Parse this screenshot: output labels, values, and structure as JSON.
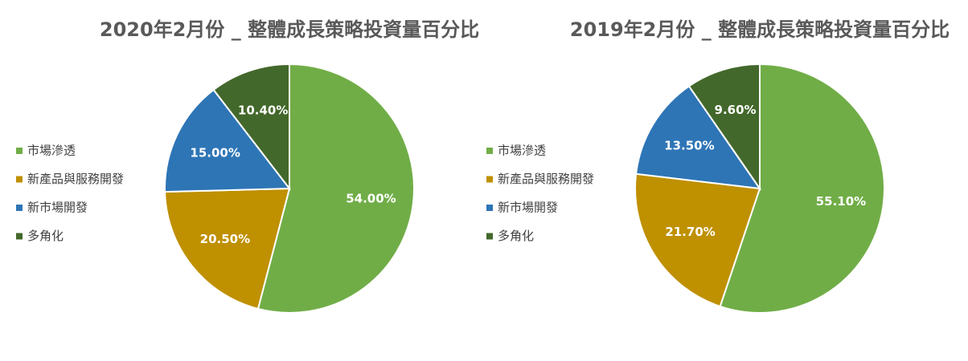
{
  "chart_data": [
    {
      "type": "pie",
      "title": "2020年2月份 _ 整體成長策略投資量百分比",
      "categories": [
        "市場滲透",
        "新產品與服務開發",
        "新市場開發",
        "多角化"
      ],
      "values": [
        54,
        20.5,
        15,
        10.4
      ],
      "value_labels": [
        "54.00%",
        "20.50%",
        "15.00%",
        "10.40%"
      ],
      "colors": [
        "#70ad47",
        "#bf9000",
        "#2e75b6",
        "#43682b"
      ],
      "legend": "left"
    },
    {
      "type": "pie",
      "title": "2019年2月份 _ 整體成長策略投資量百分比",
      "categories": [
        "市場滲透",
        "新產品與服務開發",
        "新市場開發",
        "多角化"
      ],
      "values": [
        55.1,
        21.7,
        13.5,
        9.6
      ],
      "value_labels": [
        "55.10%",
        "21.70%",
        "13.50%",
        "9.60%"
      ],
      "colors": [
        "#70ad47",
        "#bf9000",
        "#2e75b6",
        "#43682b"
      ],
      "legend": "left"
    }
  ]
}
